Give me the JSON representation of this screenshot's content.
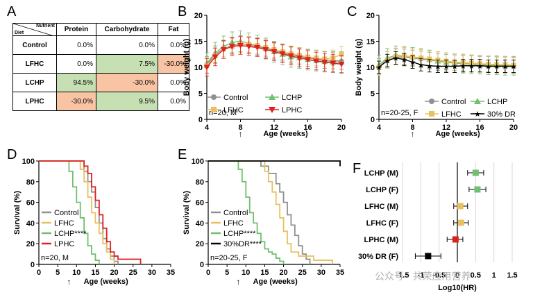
{
  "panels": {
    "A": "A",
    "B": "B",
    "C": "C",
    "D": "D",
    "E": "E",
    "F": "F"
  },
  "table": {
    "corner_top": "Nutrient",
    "corner_bottom": "Diet",
    "headers": [
      "Protein",
      "Carbohydrate",
      "Fat"
    ],
    "rows": [
      {
        "diet": "Control",
        "values": [
          "0.0%",
          "0.0%",
          "0.0%"
        ],
        "colors": [
          "",
          "",
          ""
        ]
      },
      {
        "diet": "LFHC",
        "values": [
          "0.0%",
          "7.5%",
          "-30.0%"
        ],
        "colors": [
          "",
          "green",
          "salmon"
        ]
      },
      {
        "diet": "LCHP",
        "values": [
          "94.5%",
          "-30.0%",
          "0.0%"
        ],
        "colors": [
          "green",
          "salmon",
          ""
        ]
      },
      {
        "diet": "LPHC",
        "values": [
          "-30.0%",
          "9.5%",
          "0.0%"
        ],
        "colors": [
          "salmon",
          "green",
          ""
        ]
      }
    ]
  },
  "colors": {
    "Control": "#909090",
    "LFHC": "#e8c060",
    "LCHP": "#70c070",
    "LPHC": "#e02020",
    "DR": "#000000"
  },
  "watermark": "公众号 · 共荣应用营养",
  "chart_data": [
    {
      "id": "B",
      "type": "line",
      "ylabel": "Body weight (g)",
      "xlabel": "Age (weeks)",
      "xlim": [
        4,
        20
      ],
      "ylim": [
        0,
        20
      ],
      "xticks": [
        4,
        8,
        12,
        16,
        20
      ],
      "yticks": [
        0,
        5,
        10,
        15,
        20
      ],
      "annotation": "n=20, M",
      "marker_age": 8,
      "series": [
        {
          "name": "Control",
          "marker": "circle",
          "x": [
            4,
            5,
            6,
            7,
            8,
            9,
            10,
            11,
            12,
            13,
            14,
            15,
            16,
            17,
            18,
            19,
            20
          ],
          "y": [
            10.5,
            12.5,
            13.6,
            14.2,
            14.5,
            14.3,
            14.0,
            13.6,
            13.2,
            12.8,
            12.4,
            12.1,
            11.8,
            11.6,
            11.4,
            11.3,
            11.2
          ],
          "err": 1.6
        },
        {
          "name": "LCHP",
          "marker": "triangle",
          "x": [
            4,
            5,
            6,
            7,
            8,
            9,
            10,
            11,
            12,
            13,
            14,
            15,
            16,
            17,
            18,
            19,
            20
          ],
          "y": [
            10.8,
            12.8,
            14.0,
            14.8,
            15.0,
            14.6,
            14.2,
            13.6,
            13.0,
            12.5,
            12.0,
            11.8,
            11.5,
            11.3,
            11.1,
            11.0,
            11.0
          ],
          "err": 2.0
        },
        {
          "name": "LFHC",
          "marker": "square",
          "x": [
            4,
            5,
            6,
            7,
            8,
            9,
            10,
            11,
            12,
            13,
            14,
            15,
            16,
            17,
            18,
            19,
            20
          ],
          "y": [
            10.3,
            12.2,
            13.5,
            14.0,
            14.4,
            14.4,
            14.2,
            13.8,
            13.4,
            13.0,
            12.6,
            12.3,
            12.0,
            11.8,
            11.6,
            11.8,
            12.5
          ],
          "err": 1.5
        },
        {
          "name": "LPHC",
          "marker": "triangle-down",
          "x": [
            4,
            5,
            6,
            7,
            8,
            9,
            10,
            11,
            12,
            13,
            14,
            15,
            16,
            17,
            18,
            19,
            20
          ],
          "y": [
            10.0,
            12.0,
            13.4,
            14.0,
            14.2,
            14.0,
            13.8,
            13.4,
            13.0,
            12.6,
            12.2,
            11.8,
            11.5,
            11.2,
            11.0,
            10.8,
            10.6
          ],
          "err": 1.7
        }
      ]
    },
    {
      "id": "C",
      "type": "line",
      "ylabel": "Body weight (g)",
      "xlabel": "Age (weeks)",
      "xlim": [
        4,
        20
      ],
      "ylim": [
        0,
        20
      ],
      "xticks": [
        4,
        8,
        12,
        16,
        20
      ],
      "yticks": [
        0,
        5,
        10,
        15,
        20
      ],
      "annotation": "n=20-25, F",
      "marker_age": 8,
      "series": [
        {
          "name": "Control",
          "marker": "circle",
          "x": [
            4,
            5,
            6,
            7,
            8,
            9,
            10,
            11,
            12,
            13,
            14,
            15,
            16,
            17,
            18,
            19,
            20
          ],
          "y": [
            10.2,
            11.5,
            12.0,
            12.0,
            11.8,
            11.6,
            11.4,
            11.2,
            11.0,
            10.9,
            10.8,
            10.7,
            10.6,
            10.6,
            10.5,
            10.5,
            10.4
          ],
          "err": 1.5
        },
        {
          "name": "LCHP",
          "marker": "triangle",
          "x": [
            4,
            5,
            6,
            7,
            8,
            9,
            10,
            11,
            12,
            13,
            14,
            15,
            16,
            17,
            18,
            19,
            20
          ],
          "y": [
            10.5,
            11.8,
            12.3,
            12.2,
            12.0,
            11.8,
            11.5,
            11.2,
            11.0,
            10.8,
            10.7,
            10.6,
            10.5,
            10.4,
            10.4,
            10.3,
            10.3
          ],
          "err": 1.8
        },
        {
          "name": "LFHC",
          "marker": "square",
          "x": [
            4,
            5,
            6,
            7,
            8,
            9,
            10,
            11,
            12,
            13,
            14,
            15,
            16,
            17,
            18,
            19,
            20
          ],
          "y": [
            10.0,
            11.4,
            12.1,
            12.2,
            12.0,
            11.8,
            11.6,
            11.4,
            11.2,
            11.0,
            10.9,
            10.8,
            10.7,
            10.6,
            10.5,
            10.5,
            10.4
          ],
          "err": 1.6
        },
        {
          "name": "30% DR",
          "marker": "star",
          "x": [
            4,
            5,
            6,
            7,
            8,
            9,
            10,
            11,
            12,
            13,
            14,
            15,
            16,
            17,
            18,
            19,
            20
          ],
          "y": [
            10.0,
            11.3,
            11.8,
            11.5,
            11.0,
            10.5,
            10.3,
            10.2,
            10.2,
            10.2,
            10.3,
            10.3,
            10.3,
            10.2,
            10.2,
            10.2,
            10.2
          ],
          "err": 1.2
        }
      ]
    },
    {
      "id": "D",
      "type": "line",
      "ylabel": "Survival (%)",
      "xlabel": "Age (weeks)",
      "xlim": [
        0,
        35
      ],
      "ylim": [
        0,
        100
      ],
      "xticks": [
        0,
        5,
        10,
        15,
        20,
        25,
        30,
        35
      ],
      "yticks": [
        0,
        20,
        40,
        60,
        80,
        100
      ],
      "annotation": "n=20, M",
      "marker_age": 8,
      "series": [
        {
          "name": "Control",
          "x": [
            0,
            11,
            12,
            13,
            14,
            15,
            16,
            17,
            18,
            19,
            20,
            21
          ],
          "y": [
            100,
            100,
            90,
            80,
            70,
            55,
            40,
            25,
            15,
            8,
            3,
            0
          ]
        },
        {
          "name": "LFHC",
          "x": [
            0,
            10,
            11,
            12,
            13,
            14,
            15,
            16,
            17,
            18,
            19,
            20
          ],
          "y": [
            100,
            100,
            92,
            80,
            65,
            50,
            40,
            30,
            20,
            12,
            5,
            0
          ]
        },
        {
          "name": "LCHP",
          "label": "LCHP****",
          "x": [
            0,
            7,
            8,
            9,
            10,
            11,
            12,
            13,
            14,
            15,
            16
          ],
          "y": [
            100,
            100,
            90,
            75,
            60,
            45,
            30,
            18,
            10,
            4,
            0
          ]
        },
        {
          "name": "LPHC",
          "x": [
            0,
            11,
            12,
            13,
            14,
            15,
            16,
            17,
            18,
            19,
            20,
            21,
            27
          ],
          "y": [
            100,
            100,
            95,
            88,
            75,
            62,
            48,
            35,
            22,
            12,
            8,
            5,
            0
          ]
        }
      ]
    },
    {
      "id": "E",
      "type": "line",
      "ylabel": "Survival (%)",
      "xlabel": "Age (weeks)",
      "xlim": [
        0,
        35
      ],
      "ylim": [
        0,
        100
      ],
      "xticks": [
        0,
        5,
        10,
        15,
        20,
        25,
        30,
        35
      ],
      "yticks": [
        0,
        20,
        40,
        60,
        80,
        100
      ],
      "annotation": "n=20-25, F",
      "marker_age": 8,
      "series": [
        {
          "name": "Control",
          "x": [
            0,
            12,
            14,
            16,
            18,
            19,
            20,
            21,
            22,
            23,
            24,
            25,
            26,
            27
          ],
          "y": [
            100,
            100,
            95,
            88,
            78,
            70,
            60,
            48,
            38,
            28,
            18,
            10,
            5,
            0
          ]
        },
        {
          "name": "LFHC",
          "x": [
            0,
            13,
            15,
            16,
            17,
            18,
            19,
            20,
            21,
            22,
            24,
            28,
            33
          ],
          "y": [
            100,
            100,
            90,
            80,
            70,
            58,
            45,
            32,
            20,
            12,
            8,
            4,
            0
          ]
        },
        {
          "name": "LCHP",
          "label": "LCHP****",
          "x": [
            0,
            7,
            8,
            9,
            10,
            11,
            12,
            13,
            14,
            15,
            16,
            17,
            18,
            19,
            20
          ],
          "y": [
            100,
            100,
            92,
            80,
            65,
            50,
            40,
            30,
            22,
            15,
            12,
            10,
            6,
            3,
            0
          ]
        },
        {
          "name": "30%DR",
          "label": "30%DR****",
          "x": [
            0,
            34,
            35
          ],
          "y": [
            100,
            100,
            95
          ]
        }
      ]
    },
    {
      "id": "F",
      "type": "scatter",
      "xlabel": "Log10(HR)",
      "xlim": [
        -1.5,
        1.5
      ],
      "xticks": [
        -1.5,
        -1,
        -0.5,
        0,
        0.5,
        1,
        1.5
      ],
      "tick_labels": [
        "-1.5",
        "-1",
        "-0.5",
        "0",
        "0.5",
        "1",
        "1.5"
      ],
      "rows": [
        {
          "label": "LCHP (M)",
          "value": 0.5,
          "low": 0.28,
          "high": 0.72,
          "color": "#70c070"
        },
        {
          "label": "LCHP (F)",
          "value": 0.55,
          "low": 0.32,
          "high": 0.78,
          "color": "#70c070"
        },
        {
          "label": "LFHC (M)",
          "value": 0.08,
          "low": -0.1,
          "high": 0.28,
          "color": "#e8c060"
        },
        {
          "label": "LFHC (F)",
          "value": 0.1,
          "low": -0.1,
          "high": 0.3,
          "color": "#e8c060"
        },
        {
          "label": "LPHC (M)",
          "value": -0.05,
          "low": -0.28,
          "high": 0.15,
          "color": "#e02020"
        },
        {
          "label": "30% DR (F)",
          "value": -0.8,
          "low": -1.15,
          "high": -0.45,
          "color": "#000000"
        }
      ]
    }
  ]
}
